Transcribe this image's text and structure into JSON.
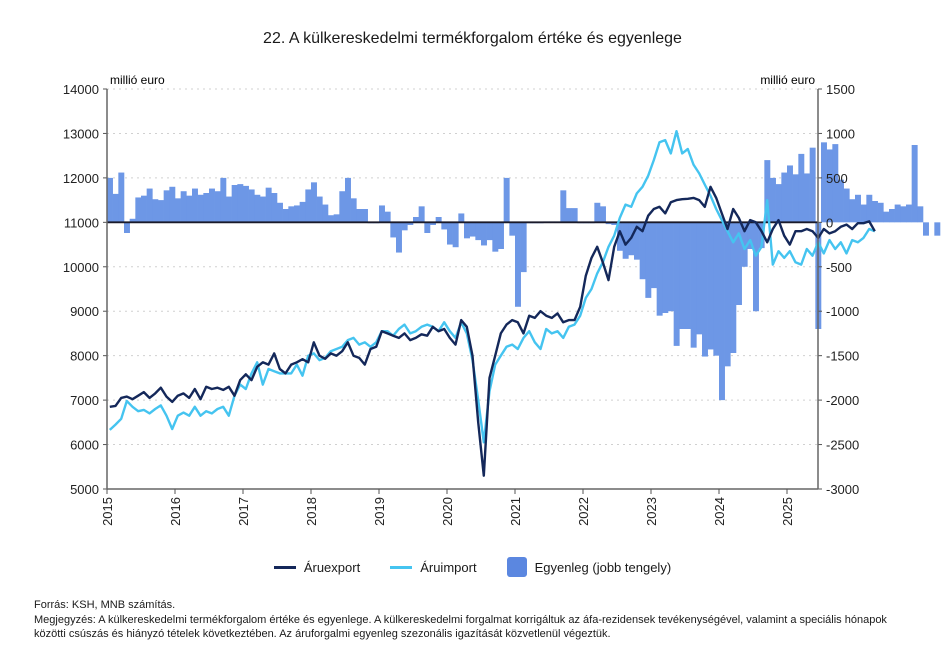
{
  "title": "22. A külkereskedelmi termékforgalom értéke és egyenlege",
  "chart_data": {
    "type": "bar+line",
    "title": "22. A külkereskedelmi termékforgalom értéke és egyenlege",
    "left_axis": {
      "label": "millió euro",
      "range": [
        5000,
        14000
      ],
      "ticks": [
        5000,
        6000,
        7000,
        8000,
        9000,
        10000,
        11000,
        12000,
        13000,
        14000
      ]
    },
    "right_axis": {
      "label": "millió euro",
      "range": [
        -3000,
        1500
      ],
      "ticks": [
        -3000,
        -2500,
        -2000,
        -1500,
        -1000,
        -500,
        0,
        500,
        1000,
        1500
      ]
    },
    "x_ticks": [
      "2015",
      "2016",
      "2017",
      "2018",
      "2019",
      "2020",
      "2021",
      "2022",
      "2023",
      "2024",
      "2025"
    ],
    "x_start": "2015-01",
    "frequency": "monthly",
    "grid": true,
    "legend_position": "bottom",
    "series": [
      {
        "name": "Áruexport",
        "axis": "left",
        "type": "line",
        "color": "#14285a",
        "values": [
          6850,
          6870,
          7050,
          7080,
          7020,
          7100,
          7180,
          7050,
          7150,
          7280,
          7080,
          6960,
          7100,
          7150,
          7050,
          7250,
          7020,
          7300,
          7250,
          7280,
          7230,
          7300,
          7100,
          7450,
          7580,
          7450,
          7750,
          7850,
          7800,
          8050,
          7700,
          7600,
          7800,
          7850,
          7920,
          7850,
          8300,
          8000,
          7930,
          8050,
          8000,
          8100,
          8300,
          8000,
          7950,
          7800,
          8150,
          8200,
          8550,
          8500,
          8450,
          8400,
          8500,
          8350,
          8400,
          8480,
          8450,
          8650,
          8550,
          8600,
          8400,
          8250,
          8800,
          8650,
          8000,
          6500,
          5300,
          7500,
          8000,
          8500,
          8700,
          8800,
          8750,
          8500,
          8900,
          8850,
          9000,
          8900,
          8850,
          8950,
          8750,
          8800,
          8800,
          9100,
          9800,
          10200,
          10450,
          10100,
          9700,
          10450,
          10800,
          10500,
          10650,
          10900,
          10800,
          11150,
          11300,
          11350,
          11200,
          11450,
          11500,
          11520,
          11530,
          11550,
          11500,
          11350,
          11800,
          11550,
          11200,
          10850,
          11300,
          11100,
          10800,
          11050,
          11000,
          10800,
          10550,
          10850,
          11050,
          10700,
          10500,
          10800,
          10800,
          10850,
          10800,
          10650,
          10850,
          10750,
          10800,
          10900,
          10950,
          10850,
          10980,
          10980,
          11020,
          10800
        ]
      },
      {
        "name": "Áruimport",
        "axis": "left",
        "type": "line",
        "color": "#45c4f0",
        "values": [
          6330,
          6450,
          6580,
          6980,
          6850,
          6750,
          6780,
          6700,
          6800,
          6880,
          6650,
          6350,
          6650,
          6720,
          6650,
          6850,
          6650,
          6750,
          6700,
          6800,
          6850,
          6650,
          7100,
          7350,
          7250,
          7600,
          7850,
          7350,
          7700,
          7650,
          7600,
          7600,
          7600,
          7800,
          7550,
          8000,
          8050,
          7900,
          7950,
          8100,
          8150,
          8200,
          8350,
          8400,
          8250,
          8300,
          8200,
          8300,
          8550,
          8550,
          8450,
          8600,
          8700,
          8500,
          8550,
          8650,
          8700,
          8650,
          8550,
          8750,
          8550,
          8400,
          8750,
          8500,
          7900,
          7000,
          6050,
          7200,
          7800,
          8000,
          8200,
          8250,
          8150,
          8400,
          8550,
          8300,
          8150,
          8600,
          8500,
          8550,
          8400,
          8650,
          8700,
          8900,
          9300,
          9500,
          9850,
          10100,
          10450,
          10700,
          11100,
          11400,
          11350,
          11650,
          11800,
          12050,
          12400,
          12800,
          12850,
          12550,
          13050,
          12550,
          12650,
          12300,
          12100,
          11850,
          11600,
          11300,
          11050,
          10800,
          10550,
          10750,
          10400,
          10600,
          10250,
          10450,
          11500,
          10050,
          10350,
          10200,
          10350,
          10100,
          10050,
          10400,
          10250,
          10550,
          10300,
          10600,
          10400,
          10550,
          10300,
          10600,
          10550,
          10650,
          10850,
          10800
        ]
      },
      {
        "name": "Egyenleg (jobb tengely)",
        "axis": "right",
        "type": "bar",
        "color": "#6d97e6",
        "values": [
          500,
          320,
          560,
          -120,
          40,
          280,
          300,
          380,
          260,
          250,
          360,
          400,
          270,
          350,
          300,
          380,
          310,
          330,
          380,
          350,
          500,
          290,
          420,
          430,
          410,
          370,
          310,
          290,
          390,
          330,
          220,
          150,
          180,
          190,
          230,
          370,
          450,
          290,
          200,
          80,
          90,
          350,
          500,
          270,
          150,
          150,
          -10,
          -10,
          190,
          120,
          -170,
          -340,
          -90,
          -30,
          60,
          180,
          -120,
          -30,
          60,
          -80,
          -250,
          -280,
          100,
          -180,
          -160,
          -200,
          -260,
          -200,
          -330,
          -300,
          500,
          -150,
          -950,
          -560,
          -10,
          -10,
          -10,
          10,
          10,
          10,
          360,
          160,
          160,
          -10,
          -10,
          -10,
          220,
          180,
          -20,
          -30,
          -320,
          -410,
          -370,
          -420,
          -640,
          -850,
          -740,
          -1050,
          -1020,
          -1000,
          -1390,
          -1200,
          -1200,
          -1410,
          -1260,
          -1510,
          -1430,
          -1500,
          -2000,
          -1620,
          -1470,
          -930,
          -500,
          -300,
          -1000,
          -290,
          700,
          500,
          430,
          560,
          640,
          540,
          770,
          550,
          840,
          -1200,
          900,
          820,
          880,
          480,
          380,
          260,
          310,
          200,
          310,
          240,
          220,
          120,
          150,
          200,
          180,
          200,
          870,
          180,
          -150,
          0,
          -150
        ]
      }
    ]
  },
  "legend": {
    "export_label": "Áruexport",
    "import_label": "Áruimport",
    "balance_label": "Egyenleg (jobb tengely)",
    "export_color": "#14285a",
    "import_color": "#45c4f0",
    "balance_color": "#6d97e6"
  },
  "notes": {
    "source": "Forrás: KSH, MNB számítás.",
    "note": "Megjegyzés: A külkereskedelmi termékforgalom értéke és egyenlege. A külkereskedelmi forgalmat korrigáltuk az áfa-rezidensek tevékenységével, valamint a speciális hónapok közötti csúszás és hiányzó tételek következtében. Az áruforgalmi egyenleg szezonális igazítását közvetlenül végeztük."
  }
}
